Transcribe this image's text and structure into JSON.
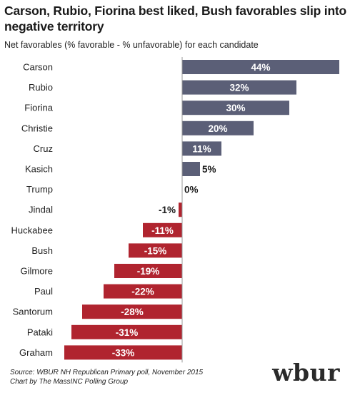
{
  "header": {
    "title": "Carson, Rubio, Fiorina best liked, Bush favorables slip into negative territory",
    "subtitle": "Net favorables (% favorable - % unfavorable) for each candidate"
  },
  "chart_data": {
    "type": "bar",
    "orientation": "horizontal",
    "categories": [
      "Carson",
      "Rubio",
      "Fiorina",
      "Christie",
      "Cruz",
      "Kasich",
      "Trump",
      "Jindal",
      "Huckabee",
      "Bush",
      "Gilmore",
      "Paul",
      "Santorum",
      "Pataki",
      "Graham"
    ],
    "values": [
      44,
      32,
      30,
      20,
      11,
      5,
      0,
      -1,
      -11,
      -15,
      -19,
      -22,
      -28,
      -31,
      -33
    ],
    "labels": [
      "44%",
      "32%",
      "30%",
      "20%",
      "11%",
      "5%",
      "0%",
      "-1%",
      "-11%",
      "-15%",
      "-19%",
      "-22%",
      "-28%",
      "-31%",
      "-33%"
    ],
    "title": "Carson, Rubio, Fiorina best liked, Bush favorables slip into negative territory",
    "subtitle": "Net favorables (% favorable - % unfavorable) for each candidate",
    "xlim": [
      -34,
      45
    ],
    "grid": false,
    "legend": "none",
    "colors": {
      "positive": "#5b5f77",
      "negative": "#b0242f"
    }
  },
  "footer": {
    "source_line1": "Source: WBUR NH Republican Primary poll, November 2015",
    "source_line2": "Chart by The MassINC Polling Group",
    "logo": "wbur"
  }
}
